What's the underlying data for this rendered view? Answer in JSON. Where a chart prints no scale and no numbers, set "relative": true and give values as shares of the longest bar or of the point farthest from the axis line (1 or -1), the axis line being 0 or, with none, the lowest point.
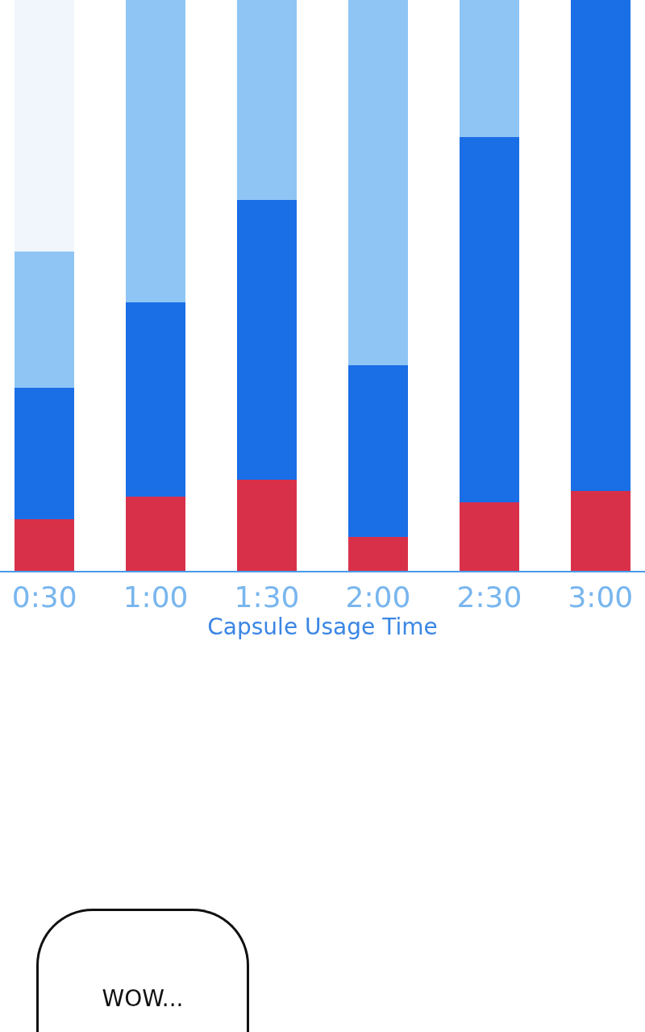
{
  "chart_data": {
    "type": "bar",
    "stacked": true,
    "relative": true,
    "xlabel": "Capsule Usage Time",
    "categories": [
      "0:30",
      "1:00",
      "1:30",
      "2:00",
      "2:30",
      "3:00"
    ],
    "series": [
      {
        "color": "#d9304a",
        "values": [
          0.09,
          0.13,
          0.16,
          0.06,
          0.12,
          0.14
        ]
      },
      {
        "color": "#1a6ee6",
        "values": [
          0.23,
          0.34,
          0.49,
          0.3,
          0.64,
          0.86
        ]
      },
      {
        "color": "#8ec5f5",
        "values": [
          0.24,
          0.53,
          0.35,
          0.64,
          0.24,
          0
        ]
      },
      {
        "color": "#f1f6fc",
        "values": [
          0.44,
          0,
          0,
          0,
          0,
          0
        ]
      }
    ],
    "annotations": [
      "WOW..."
    ]
  }
}
